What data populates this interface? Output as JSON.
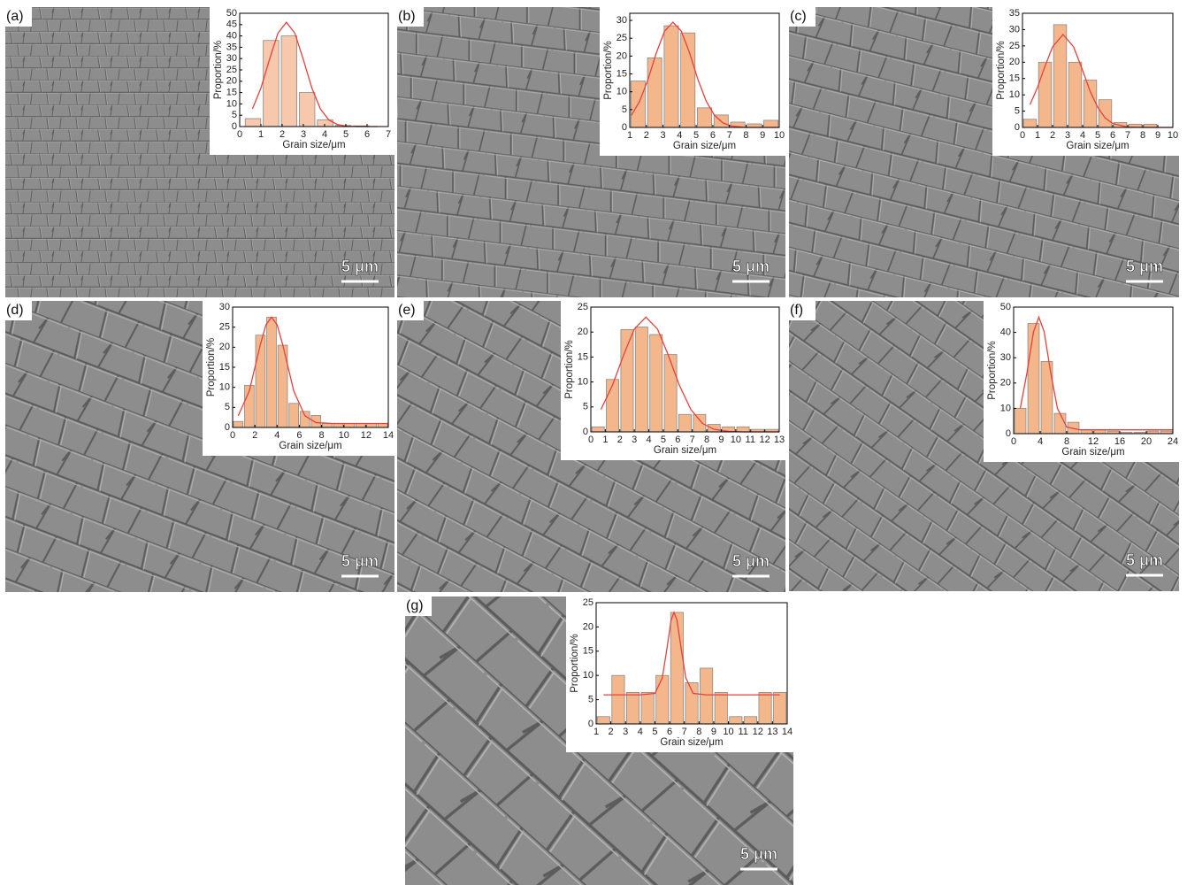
{
  "chart_data": [
    {
      "type": "histogram",
      "label": "(a)",
      "scale_bar": "5 μm",
      "xlabel": "Grain size/μm",
      "ylabel": "Proportion/%",
      "color": "#f7c8ab",
      "bins": [
        0.2,
        1.05,
        1.9,
        2.75,
        3.6,
        4.45,
        5.3,
        6.15
      ],
      "values": [
        3.5,
        38,
        40,
        15,
        3,
        0.5,
        0.3
      ],
      "fit": {
        "color": "#e8413c",
        "x": [
          0.6,
          1.0,
          1.4,
          1.8,
          2.2,
          2.6,
          3.0,
          3.4,
          3.8,
          4.2,
          4.6,
          5.0,
          5.5,
          6.0,
          6.5
        ],
        "values": [
          7.8,
          17.0,
          29.5,
          41.2,
          46,
          41.2,
          29.5,
          17.0,
          7.8,
          2.9,
          0.9,
          0.2,
          0,
          0,
          0
        ]
      },
      "xlim": [
        0,
        7
      ],
      "xticks": [
        0,
        1,
        2,
        3,
        4,
        5,
        6,
        7
      ],
      "ylim": [
        0,
        50
      ],
      "yticks": [
        0,
        5,
        10,
        15,
        20,
        25,
        30,
        35,
        40,
        45,
        50
      ]
    },
    {
      "type": "histogram",
      "label": "(b)",
      "scale_bar": "5 μm",
      "xlabel": "Grain size/μm",
      "ylabel": "Proportion/%",
      "color": "#f4b78c",
      "bins": [
        1,
        2,
        3,
        4,
        5,
        6,
        7,
        8,
        9,
        10
      ],
      "values": [
        13,
        19.5,
        28.5,
        26.5,
        5.5,
        3.5,
        1.5,
        1,
        2
      ],
      "fit": {
        "color": "#e8413c",
        "x": [
          1.1,
          1.6,
          2.1,
          2.6,
          3.1,
          3.6,
          4.1,
          4.6,
          5.1,
          5.6,
          6.1,
          6.6,
          7.1,
          8,
          9,
          10
        ],
        "values": [
          3.4,
          7.4,
          13.5,
          20.9,
          27.0,
          29.5,
          27.0,
          20.9,
          13.5,
          7.4,
          3.4,
          1.3,
          0.4,
          0,
          0,
          0
        ]
      },
      "xlim": [
        1,
        10
      ],
      "xticks": [
        1,
        2,
        3,
        4,
        5,
        6,
        7,
        8,
        9,
        10
      ],
      "ylim": [
        0,
        32
      ],
      "yticks": [
        0,
        5,
        10,
        15,
        20,
        25,
        30
      ]
    },
    {
      "type": "histogram",
      "label": "(c)",
      "scale_bar": "5 μm",
      "xlabel": "Grain size/μm",
      "ylabel": "Proportion/%",
      "color": "#f4b78c",
      "bins": [
        0,
        1,
        2,
        3,
        4,
        5,
        6,
        7,
        8,
        9
      ],
      "values": [
        2.5,
        20,
        31.5,
        20,
        14.5,
        8.5,
        1.5,
        1,
        1
      ],
      "fit": {
        "color": "#e8413c",
        "x": [
          0.5,
          1,
          1.5,
          2,
          2.7,
          3.4,
          4,
          4.5,
          5,
          5.5,
          6,
          7,
          8,
          9,
          10
        ],
        "values": [
          7.0,
          12.3,
          18.8,
          24.7,
          28.5,
          24.7,
          17.5,
          11.1,
          6.2,
          2.9,
          1.2,
          0.1,
          0,
          0,
          0
        ]
      },
      "xlim": [
        0,
        10
      ],
      "xticks": [
        0,
        1,
        2,
        3,
        4,
        5,
        6,
        7,
        8,
        9,
        10
      ],
      "ylim": [
        0,
        35
      ],
      "yticks": [
        0,
        5,
        10,
        15,
        20,
        25,
        30,
        35
      ]
    },
    {
      "type": "histogram",
      "label": "(d)",
      "scale_bar": "5 μm",
      "xlabel": "Grain size/μm",
      "ylabel": "Proportion/%",
      "color": "#f4b78c",
      "bins": [
        0,
        1,
        2,
        3,
        4,
        5,
        6,
        7,
        8,
        9,
        10,
        11,
        12,
        13,
        14
      ],
      "values": [
        1.5,
        10.5,
        23,
        27.5,
        20.5,
        6,
        4,
        3,
        1,
        1,
        1,
        1,
        1,
        1
      ],
      "fit": {
        "color": "#e8413c",
        "x": [
          0.5,
          1.5,
          2.5,
          3,
          3.5,
          4,
          4.5,
          5.5,
          6.5,
          7.5,
          9,
          11,
          14
        ],
        "values": [
          2.9,
          9.1,
          20.7,
          25.6,
          27.5,
          25.6,
          20.7,
          9.1,
          2.9,
          1.2,
          1,
          1,
          1
        ]
      },
      "xlim": [
        0,
        14
      ],
      "xticks": [
        0,
        2,
        4,
        6,
        8,
        10,
        12,
        14
      ],
      "ylim": [
        0,
        30
      ],
      "yticks": [
        0,
        5,
        10,
        15,
        20,
        25,
        30
      ]
    },
    {
      "type": "histogram",
      "label": "(e)",
      "scale_bar": "5 μm",
      "xlabel": "Grain size/μm",
      "ylabel": "Proportion/%",
      "color": "#f4b78c",
      "bins": [
        0,
        1,
        2,
        3,
        4,
        5,
        6,
        7,
        8,
        9,
        10,
        11,
        12,
        13
      ],
      "values": [
        1,
        10.5,
        20.5,
        21,
        19.5,
        15.5,
        3.5,
        3.5,
        1.5,
        1,
        1,
        0.5,
        0.5
      ],
      "fit": {
        "color": "#e8413c",
        "x": [
          0.7,
          1.5,
          2.3,
          3.0,
          3.8,
          4.6,
          5.3,
          6.1,
          6.9,
          7.7,
          8.5,
          9.5,
          10.5,
          12,
          13
        ],
        "values": [
          4.5,
          9.4,
          15.7,
          20.6,
          23,
          20.6,
          15.7,
          9.4,
          4.5,
          1.7,
          0.5,
          0.1,
          0,
          0,
          0
        ]
      },
      "xlim": [
        0,
        13
      ],
      "xticks": [
        0,
        1,
        2,
        3,
        4,
        5,
        6,
        7,
        8,
        9,
        10,
        11,
        12,
        13
      ],
      "ylim": [
        0,
        25
      ],
      "yticks": [
        0,
        5,
        10,
        15,
        20,
        25
      ]
    },
    {
      "type": "histogram",
      "label": "(f)",
      "scale_bar": "5 μm",
      "xlabel": "Grain size/μm",
      "ylabel": "Proportion/%",
      "color": "#f4b78c",
      "bins": [
        0,
        2,
        4,
        6,
        8,
        10,
        12,
        14,
        16,
        18,
        20,
        22,
        24
      ],
      "values": [
        10,
        43.5,
        28.5,
        8,
        4.5,
        1.5,
        1.5,
        1,
        0.5,
        0.5,
        1,
        1
      ],
      "fit": {
        "color": "#e8413c",
        "x": [
          1,
          2,
          3,
          3.8,
          4.6,
          5.6,
          6.6,
          8,
          10,
          14,
          18,
          24
        ],
        "values": [
          10,
          23.9,
          40.3,
          46,
          40.3,
          23.9,
          10,
          2.6,
          1.5,
          1.5,
          1.5,
          1.5
        ]
      },
      "xlim": [
        0,
        24
      ],
      "xticks": [
        0,
        4,
        8,
        12,
        16,
        20,
        24
      ],
      "ylim": [
        0,
        50
      ],
      "yticks": [
        0,
        10,
        20,
        30,
        40,
        50
      ]
    },
    {
      "type": "histogram",
      "label": "(g)",
      "scale_bar": "5 μm",
      "xlabel": "Grain size/μm",
      "ylabel": "Proportion/%",
      "color": "#f4b78c",
      "bins": [
        1,
        2,
        3,
        4,
        5,
        6,
        7,
        8,
        9,
        10,
        11,
        12,
        13,
        14
      ],
      "values": [
        1.5,
        10,
        6.5,
        6.5,
        10,
        23,
        8.5,
        11.5,
        6.5,
        1.5,
        1.5,
        6.5,
        6.5
      ],
      "fit": {
        "color": "#e8413c",
        "x": [
          1.5,
          4,
          5,
          5.5,
          5.8,
          6.1,
          6.3,
          6.5,
          6.8,
          7.1,
          7.6,
          8.5,
          13.5
        ],
        "values": [
          6,
          6,
          6.3,
          9.5,
          15.2,
          21.4,
          23,
          21.4,
          15.2,
          9.5,
          6.3,
          6,
          6
        ]
      },
      "xlim": [
        1,
        14
      ],
      "xticks": [
        1,
        2,
        3,
        4,
        5,
        6,
        7,
        8,
        9,
        10,
        11,
        12,
        13,
        14
      ],
      "ylim": [
        0,
        25
      ],
      "yticks": [
        0,
        5,
        10,
        15,
        20,
        25
      ]
    }
  ]
}
